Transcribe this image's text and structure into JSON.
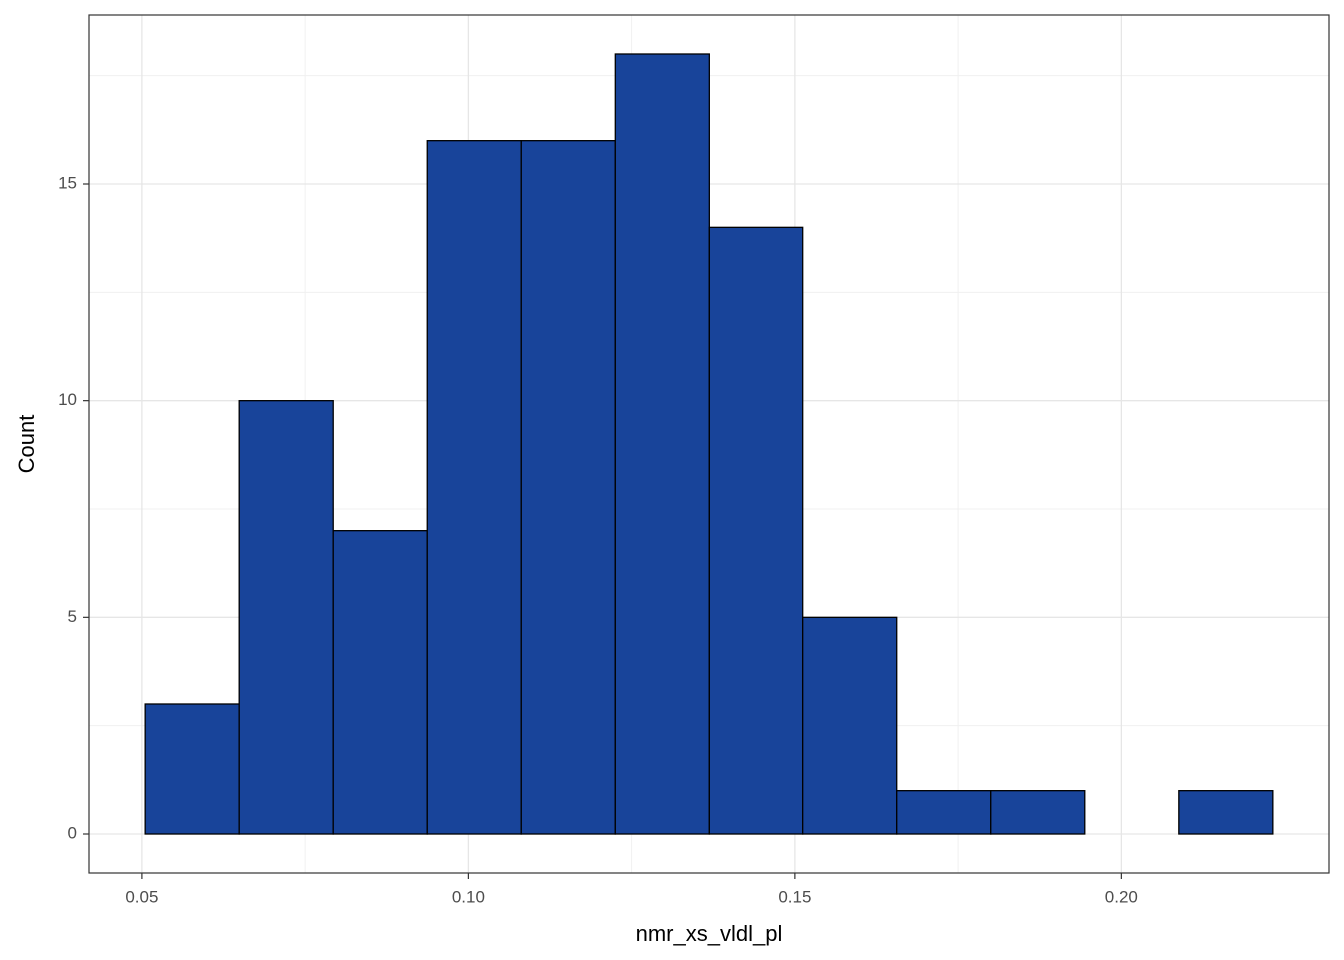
{
  "chart_data": {
    "type": "histogram",
    "x_label": "nmr_xs_vldl_pl",
    "y_label": "Count",
    "bins": [
      0.0505,
      0.0649,
      0.0793,
      0.0937,
      0.1081,
      0.1225,
      0.1369,
      0.1512,
      0.1656,
      0.18,
      0.1944,
      0.2088,
      0.2232
    ],
    "values": [
      3,
      10,
      7,
      16,
      16,
      18,
      14,
      5,
      1,
      1,
      0,
      1
    ],
    "color": "#18449a",
    "edge_color": "#000000",
    "xlim": [
      0.0419,
      0.2318
    ],
    "ylim": [
      -0.9,
      18.9
    ],
    "xticks": [
      0.05,
      {
        "value": 0.1,
        "label": "0.10"
      },
      0.15,
      {
        "value": 0.2,
        "label": "0.20"
      }
    ],
    "yticks": [
      0,
      5,
      10,
      15
    ],
    "x_minor_ticks": [
      0.075,
      0.125,
      0.175
    ],
    "y_minor_ticks": [
      2.5,
      7.5,
      12.5,
      17.5
    ],
    "grid": true
  }
}
